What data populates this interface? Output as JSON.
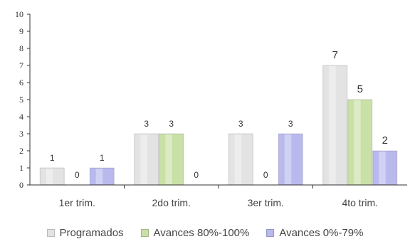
{
  "chart_data": {
    "type": "bar",
    "categories": [
      "1er trim.",
      "2do trim.",
      "3er trim.",
      "4to trim."
    ],
    "series": [
      {
        "name": "Programados",
        "values": [
          1,
          3,
          3,
          7
        ],
        "color": "#e3e3e3"
      },
      {
        "name": "Avances 80%-100%",
        "values": [
          0,
          3,
          0,
          5
        ],
        "color": "#c9e0a6"
      },
      {
        "name": "Avances 0%-79%",
        "values": [
          1,
          0,
          3,
          2
        ],
        "color": "#b9b9ee"
      }
    ],
    "ylim": [
      0,
      10
    ],
    "yticks": [
      "0",
      "1",
      "2",
      "3",
      "4",
      "5",
      "6",
      "7",
      "8",
      "9",
      "10"
    ],
    "grid": false,
    "legend_position": "bottom"
  }
}
